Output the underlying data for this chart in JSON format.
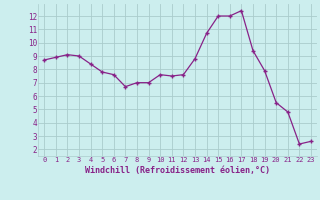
{
  "x": [
    0,
    1,
    2,
    3,
    4,
    5,
    6,
    7,
    8,
    9,
    10,
    11,
    12,
    13,
    14,
    15,
    16,
    17,
    18,
    19,
    20,
    21,
    22,
    23
  ],
  "y": [
    8.7,
    8.9,
    9.1,
    9.0,
    8.4,
    7.8,
    7.6,
    6.7,
    7.0,
    7.0,
    7.6,
    7.5,
    7.6,
    8.8,
    10.7,
    12.0,
    12.0,
    12.4,
    9.4,
    7.9,
    5.5,
    4.8,
    2.4,
    2.6
  ],
  "line_color": "#882288",
  "marker": "+",
  "bg_color": "#cceeee",
  "grid_color": "#aacccc",
  "xlabel": "Windchill (Refroidissement éolien,°C)",
  "xlabel_color": "#882288",
  "tick_color": "#882288",
  "ylim": [
    1.5,
    12.9
  ],
  "xlim": [
    -0.5,
    23.5
  ],
  "yticks": [
    2,
    3,
    4,
    5,
    6,
    7,
    8,
    9,
    10,
    11,
    12
  ],
  "xticks": [
    0,
    1,
    2,
    3,
    4,
    5,
    6,
    7,
    8,
    9,
    10,
    11,
    12,
    13,
    14,
    15,
    16,
    17,
    18,
    19,
    20,
    21,
    22,
    23
  ],
  "xtick_labels": [
    "0",
    "1",
    "2",
    "3",
    "4",
    "5",
    "6",
    "7",
    "8",
    "9",
    "10",
    "11",
    "12",
    "13",
    "14",
    "15",
    "16",
    "17",
    "18",
    "19",
    "20",
    "21",
    "22",
    "23"
  ],
  "marker_size": 3.5,
  "linewidth": 0.9
}
